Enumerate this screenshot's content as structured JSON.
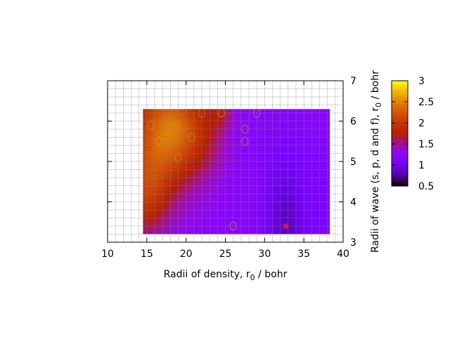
{
  "chart_data": {
    "type": "heatmap",
    "title": "",
    "xlabel": "Radii of density, r",
    "xlabel_sub": "0",
    "xlabel_unit": " / bohr",
    "ylabel": "Radii of wave (s, p, d and f), r",
    "ylabel_sub": "0",
    "ylabel_unit": " / bohr",
    "xlim": [
      10,
      40
    ],
    "ylim": [
      3,
      7
    ],
    "x_ticks": [
      10,
      15,
      20,
      25,
      30,
      35,
      40
    ],
    "y_ticks": [
      3,
      4,
      5,
      6,
      7
    ],
    "data_x_range": [
      14.5,
      38.3
    ],
    "data_y_range": [
      3.2,
      6.3
    ],
    "colorbar": {
      "min": 0.5,
      "max": 3,
      "ticks": [
        0.5,
        1,
        1.5,
        2,
        2.5,
        3
      ],
      "palette": "gnuplot"
    },
    "colors": {
      "marker": "#ff2020",
      "contour": "#d7a000",
      "grid": "#888888"
    },
    "grid": true,
    "marker": {
      "x": 32.7,
      "y": 3.4,
      "symbol": "x"
    },
    "field": {
      "base": 1.2,
      "components": [
        {
          "x": 16.5,
          "y": 5.5,
          "amp": 0.95,
          "sx": 4.2,
          "sy": 1.6
        },
        {
          "x": 19.0,
          "y": 5.9,
          "amp": 0.5,
          "sx": 3.0,
          "sy": 0.9
        },
        {
          "x": 14.8,
          "y": 4.1,
          "amp": 0.45,
          "sx": 2.5,
          "sy": 1.0
        },
        {
          "x": 22.5,
          "y": 5.6,
          "amp": 0.35,
          "sx": 3.0,
          "sy": 1.2
        },
        {
          "x": 24.5,
          "y": 6.2,
          "amp": 0.3,
          "sx": 1.5,
          "sy": 0.4
        },
        {
          "x": 32.7,
          "y": 3.4,
          "amp": -0.35,
          "sx": 2.6,
          "sy": 1.8
        },
        {
          "x": 37.5,
          "y": 3.8,
          "amp": -0.1,
          "sx": 2.0,
          "sy": 1.5
        }
      ]
    },
    "spots": [
      {
        "x": 15.5,
        "y": 5.9
      },
      {
        "x": 16.5,
        "y": 5.5
      },
      {
        "x": 18.8,
        "y": 5.9
      },
      {
        "x": 19.0,
        "y": 5.1
      },
      {
        "x": 20.7,
        "y": 5.6
      },
      {
        "x": 22.0,
        "y": 6.2
      },
      {
        "x": 24.5,
        "y": 6.2
      },
      {
        "x": 27.5,
        "y": 5.8
      },
      {
        "x": 27.5,
        "y": 5.5
      },
      {
        "x": 29.0,
        "y": 6.2
      },
      {
        "x": 26.0,
        "y": 3.4
      }
    ]
  }
}
